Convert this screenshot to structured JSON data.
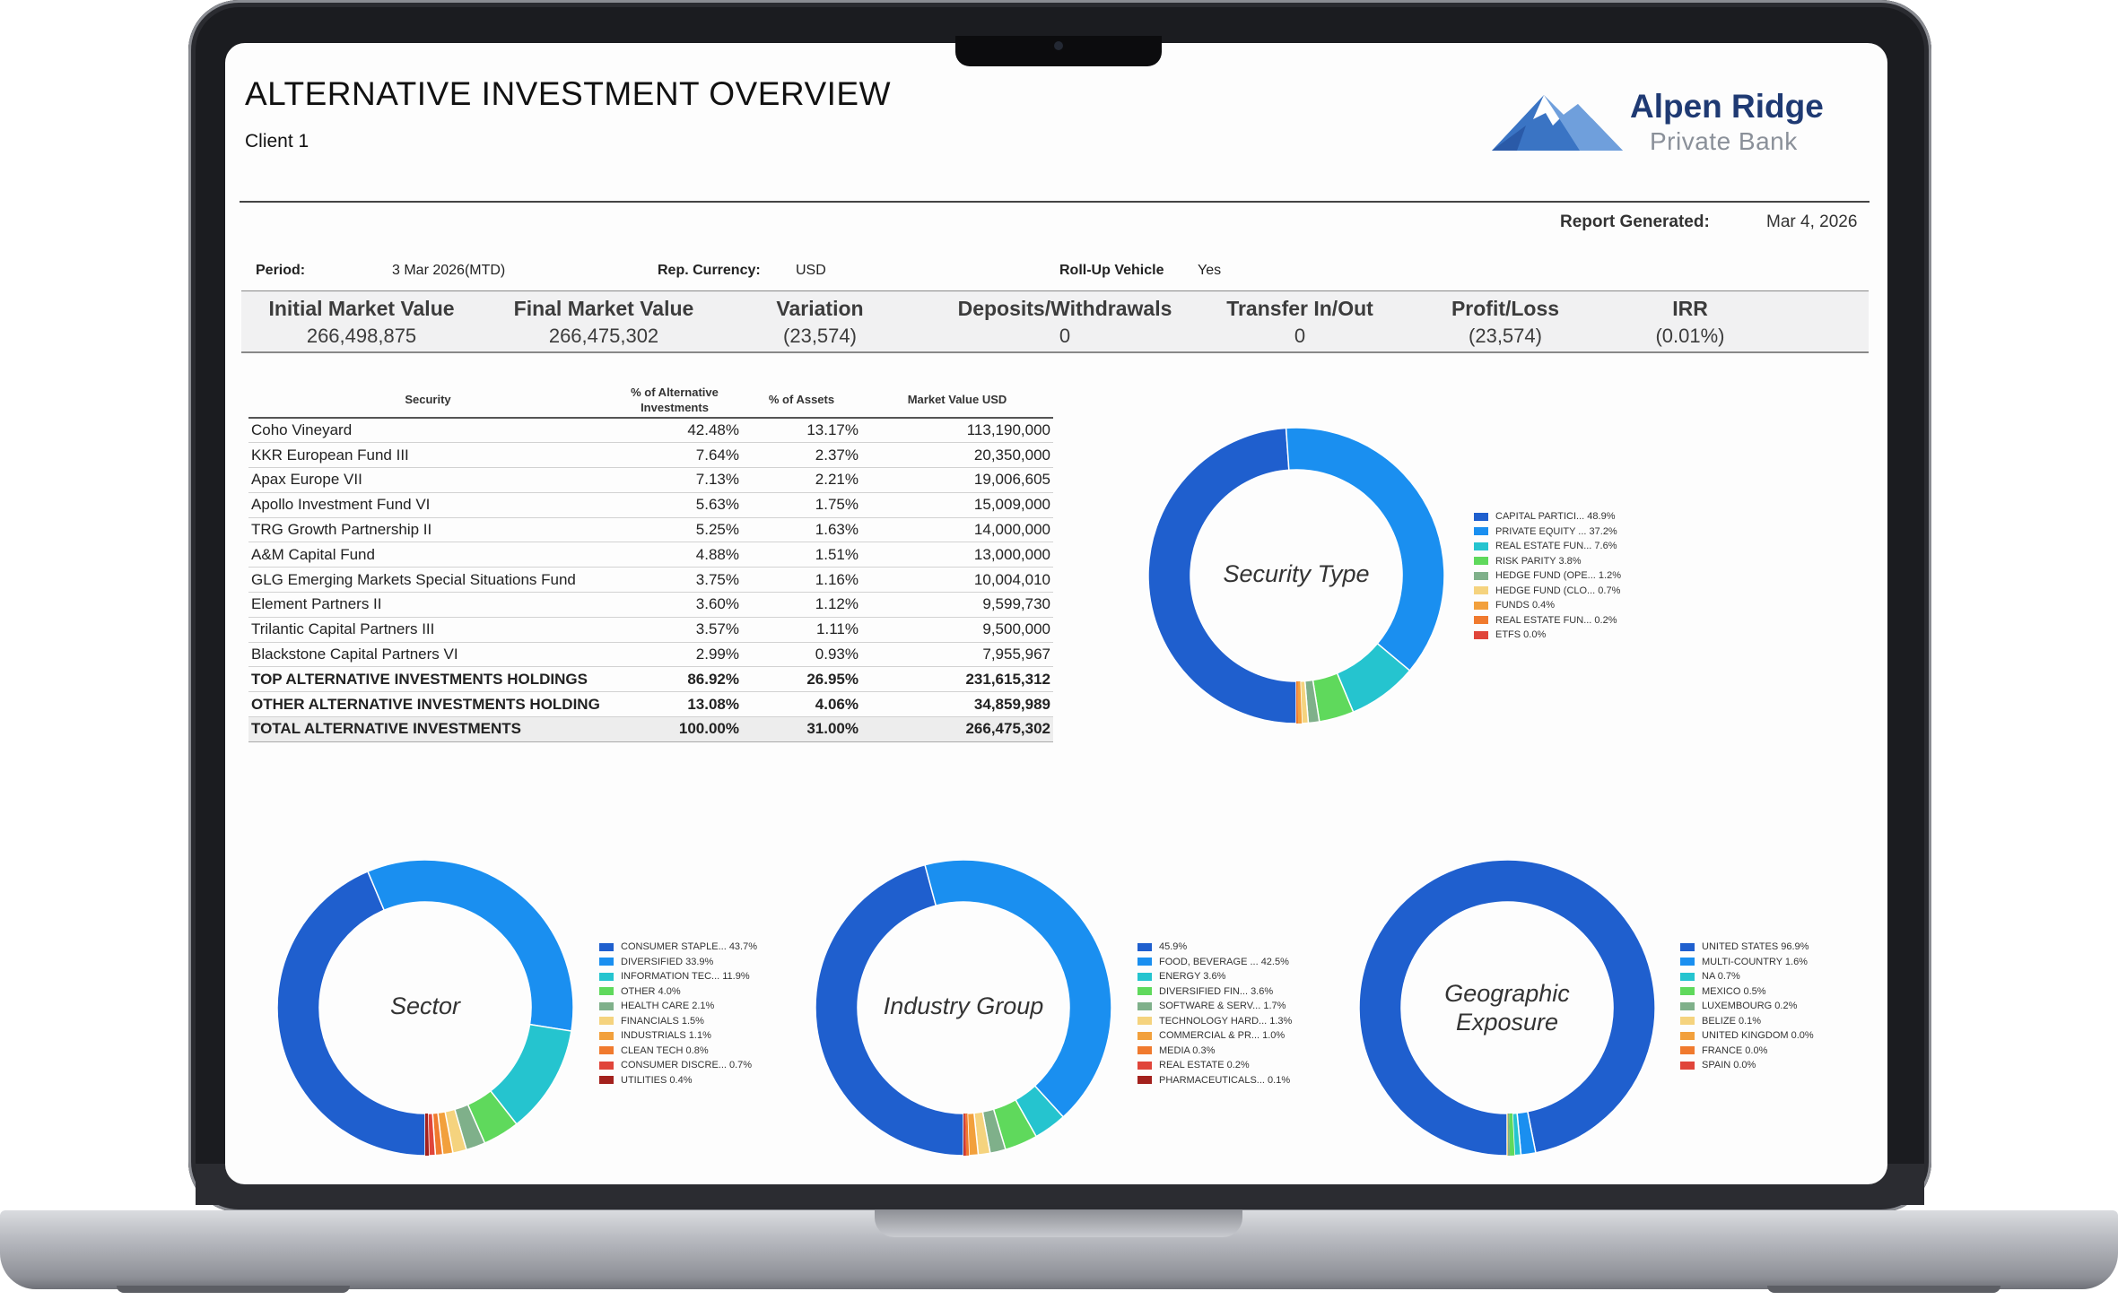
{
  "report": {
    "title": "ALTERNATIVE INVESTMENT OVERVIEW",
    "client": "Client 1",
    "logo": {
      "name": "Alpen Ridge",
      "subtitle": "Private Bank"
    },
    "generated_label": "Report Generated:",
    "generated_value": "Mar 4, 2026",
    "meta": {
      "period_label": "Period:",
      "period_value": "3 Mar 2026(MTD)",
      "currency_label": "Rep. Currency:",
      "currency_value": "USD",
      "rollup_label": "Roll-Up Vehicle",
      "rollup_value": "Yes"
    },
    "summary": [
      {
        "label": "Initial Market Value",
        "value": "266,498,875"
      },
      {
        "label": "Final Market Value",
        "value": "266,475,302"
      },
      {
        "label": "Variation",
        "value": "(23,574)"
      },
      {
        "label": "Deposits/Withdrawals",
        "value": "0"
      },
      {
        "label": "Transfer In/Out",
        "value": "0"
      },
      {
        "label": "Profit/Loss",
        "value": "(23,574)"
      },
      {
        "label": "IRR",
        "value": "(0.01%)"
      }
    ]
  },
  "table": {
    "headers": [
      "Security",
      "% of Alternative Investments",
      "% of Assets",
      "Market Value USD"
    ],
    "rows": [
      [
        "Coho Vineyard",
        "42.48%",
        "13.17%",
        "113,190,000"
      ],
      [
        "KKR European Fund III",
        "7.64%",
        "2.37%",
        "20,350,000"
      ],
      [
        "Apax Europe VII",
        "7.13%",
        "2.21%",
        "19,006,605"
      ],
      [
        "Apollo Investment Fund VI",
        "5.63%",
        "1.75%",
        "15,009,000"
      ],
      [
        "TRG Growth Partnership II",
        "5.25%",
        "1.63%",
        "14,000,000"
      ],
      [
        "A&M Capital Fund",
        "4.88%",
        "1.51%",
        "13,000,000"
      ],
      [
        "GLG Emerging Markets Special Situations Fund",
        "3.75%",
        "1.16%",
        "10,004,010"
      ],
      [
        "Element Partners II",
        "3.60%",
        "1.12%",
        "9,599,730"
      ],
      [
        "Trilantic Capital Partners III",
        "3.57%",
        "1.11%",
        "9,500,000"
      ],
      [
        "Blackstone Capital Partners VI",
        "2.99%",
        "0.93%",
        "7,955,967"
      ]
    ],
    "totals": [
      [
        "TOP ALTERNATIVE INVESTMENTS HOLDINGS",
        "86.92%",
        "26.95%",
        "231,615,312"
      ],
      [
        "OTHER ALTERNATIVE INVESTMENTS HOLDING",
        "13.08%",
        "4.06%",
        "34,859,989"
      ],
      [
        "TOTAL ALTERNATIVE INVESTMENTS",
        "100.00%",
        "31.00%",
        "266,475,302"
      ]
    ]
  },
  "chart_data": [
    {
      "type": "pie",
      "title": "Security Type",
      "labels": [
        "CAPITAL PARTICI... 48.9%",
        "PRIVATE EQUITY ... 37.2%",
        "REAL ESTATE FUN... 7.6%",
        "RISK PARITY 3.8%",
        "HEDGE FUND (OPE... 1.2%",
        "HEDGE FUND (CLO... 0.7%",
        "FUNDS 0.4%",
        "REAL ESTATE FUN... 0.2%",
        "ETFS 0.0%"
      ],
      "values": [
        48.9,
        37.2,
        7.6,
        3.8,
        1.2,
        0.7,
        0.4,
        0.2,
        0.0
      ],
      "colors": [
        "#1f5fce",
        "#1a8ff0",
        "#25c4cf",
        "#5fd95c",
        "#7fb08a",
        "#f5d37e",
        "#f2a03c",
        "#f07a2e",
        "#e0453a"
      ]
    },
    {
      "type": "pie",
      "title": "Sector",
      "labels": [
        "CONSUMER STAPLE... 43.7%",
        "DIVERSIFIED 33.9%",
        "INFORMATION TEC... 11.9%",
        "OTHER 4.0%",
        "HEALTH CARE 2.1%",
        "FINANCIALS 1.5%",
        "INDUSTRIALS 1.1%",
        "CLEAN TECH 0.8%",
        "CONSUMER DISCRE... 0.7%",
        "UTILITIES 0.4%"
      ],
      "values": [
        43.7,
        33.9,
        11.9,
        4.0,
        2.1,
        1.5,
        1.1,
        0.8,
        0.7,
        0.4
      ],
      "colors": [
        "#1f5fce",
        "#1a8ff0",
        "#25c4cf",
        "#5fd95c",
        "#7fb08a",
        "#f5d37e",
        "#f2a03c",
        "#f07a2e",
        "#e0453a",
        "#a3211d"
      ]
    },
    {
      "type": "pie",
      "title": "Industry Group",
      "labels": [
        "45.9%",
        "FOOD, BEVERAGE ... 42.5%",
        "ENERGY 3.6%",
        "DIVERSIFIED FIN... 3.6%",
        "SOFTWARE & SERV... 1.7%",
        "TECHNOLOGY HARD... 1.3%",
        "COMMERCIAL & PR... 1.0%",
        "MEDIA 0.3%",
        "REAL ESTATE 0.2%",
        "PHARMACEUTICALS... 0.1%"
      ],
      "values": [
        45.9,
        42.5,
        3.6,
        3.6,
        1.7,
        1.3,
        1.0,
        0.3,
        0.2,
        0.1
      ],
      "colors": [
        "#1f5fce",
        "#1a8ff0",
        "#25c4cf",
        "#5fd95c",
        "#7fb08a",
        "#f5d37e",
        "#f2a03c",
        "#f07a2e",
        "#e0453a",
        "#a3211d"
      ]
    },
    {
      "type": "pie",
      "title": "Geographic Exposure",
      "labels": [
        "UNITED STATES 96.9%",
        "MULTI-COUNTRY 1.6%",
        "NA 0.7%",
        "MEXICO 0.5%",
        "LUXEMBOURG 0.2%",
        "BELIZE 0.1%",
        "UNITED KINGDOM 0.0%",
        "FRANCE 0.0%",
        "SPAIN 0.0%"
      ],
      "values": [
        96.9,
        1.6,
        0.7,
        0.5,
        0.2,
        0.1,
        0.0,
        0.0,
        0.0
      ],
      "colors": [
        "#1f5fce",
        "#1a8ff0",
        "#25c4cf",
        "#5fd95c",
        "#7fb08a",
        "#f5d37e",
        "#f2a03c",
        "#f07a2e",
        "#e0453a"
      ]
    }
  ]
}
